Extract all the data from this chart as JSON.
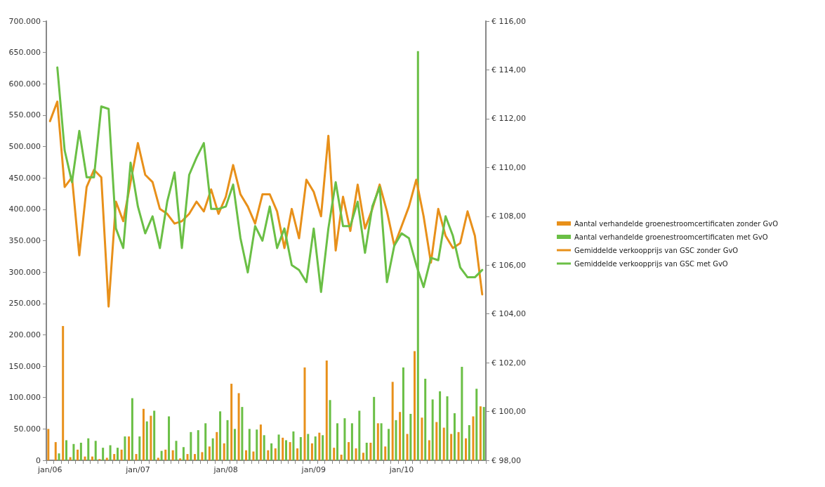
{
  "chart_data": {
    "type": "bar",
    "categories": [
      "jan/06",
      null,
      null,
      null,
      null,
      null,
      null,
      null,
      null,
      null,
      null,
      null,
      "jan/07",
      null,
      null,
      null,
      null,
      null,
      null,
      null,
      null,
      null,
      null,
      null,
      "jan/08",
      null,
      null,
      null,
      null,
      null,
      null,
      null,
      null,
      null,
      null,
      null,
      "jan/09",
      null,
      null,
      null,
      null,
      null,
      null,
      null,
      null,
      null,
      null,
      null,
      "jan/10",
      null,
      null,
      null,
      null,
      null,
      null,
      null,
      null,
      null,
      null,
      null
    ],
    "series": [
      {
        "name": "Aantal verhandelde groenestroomcertificaten zonder GvO",
        "color": "#e8901a",
        "values": [
          50000,
          29000,
          214000,
          5000,
          17000,
          6000,
          6000,
          2000,
          4000,
          10000,
          17000,
          38000,
          10000,
          82000,
          71000,
          4000,
          17000,
          16000,
          3000,
          10000,
          10000,
          13000,
          22000,
          45000,
          27000,
          122000,
          107000,
          16000,
          14000,
          57000,
          16000,
          19000,
          36000,
          29000,
          19000,
          148000,
          27000,
          44000,
          159000,
          20000,
          9000,
          29000,
          19000,
          12000,
          28000,
          59000,
          22000,
          125000,
          77000,
          42000,
          174000,
          68000,
          32000,
          61000,
          52000,
          42000,
          45000,
          35000,
          70000,
          86000
        ]
      },
      {
        "name": "Aantal verhandelde groenestroomcertificaten met GvO",
        "color": "#6abf45",
        "values": [
          null,
          11000,
          32000,
          26000,
          28000,
          35000,
          31000,
          20000,
          24000,
          20000,
          38000,
          99000,
          38000,
          62000,
          79000,
          15000,
          70000,
          31000,
          21000,
          45000,
          48000,
          59000,
          35000,
          78000,
          64000,
          50000,
          85000,
          50000,
          49000,
          40000,
          27000,
          41000,
          32000,
          46000,
          37000,
          42000,
          38000,
          40000,
          96000,
          59000,
          67000,
          59000,
          79000,
          28000,
          101000,
          59000,
          50000,
          64000,
          148000,
          74000,
          652000,
          130000,
          97000,
          110000,
          102000,
          75000,
          149000,
          56000,
          114000,
          85000
        ]
      },
      {
        "name": "Gemiddelde verkoopprijs van GSC zonder GvO",
        "type": "line",
        "axis": "y2",
        "color": "#e8901a",
        "values": [
          111.9,
          112.7,
          109.2,
          109.6,
          106.4,
          109.2,
          109.9,
          109.6,
          104.3,
          108.6,
          107.8,
          109.4,
          111.0,
          109.7,
          109.4,
          108.3,
          108.1,
          107.7,
          107.8,
          108.1,
          108.6,
          108.2,
          109.1,
          108.1,
          108.8,
          110.1,
          108.9,
          108.4,
          107.7,
          108.9,
          108.9,
          108.2,
          106.7,
          108.3,
          107.1,
          109.5,
          109.0,
          108.0,
          111.3,
          106.6,
          108.8,
          107.4,
          109.3,
          107.5,
          108.3,
          109.3,
          108.2,
          106.8,
          107.6,
          108.4,
          109.5,
          108.0,
          106.1,
          108.3,
          107.2,
          106.7,
          106.9,
          108.2,
          107.2,
          104.8
        ]
      },
      {
        "name": "Gemiddelde verkoopprijs van GSC met GvO",
        "type": "line",
        "axis": "y2",
        "color": "#6abf45",
        "values": [
          null,
          114.1,
          110.7,
          109.4,
          111.5,
          109.6,
          109.6,
          112.5,
          112.4,
          107.5,
          106.7,
          110.2,
          108.4,
          107.3,
          108.0,
          106.7,
          108.6,
          109.8,
          106.7,
          109.7,
          110.4,
          111.0,
          108.3,
          108.3,
          108.4,
          109.3,
          107.1,
          105.7,
          107.6,
          107.0,
          108.4,
          106.7,
          107.5,
          106.0,
          105.8,
          105.3,
          107.5,
          104.9,
          107.5,
          109.4,
          107.6,
          107.6,
          108.6,
          106.5,
          108.4,
          109.2,
          105.3,
          106.8,
          107.3,
          107.1,
          106.0,
          105.1,
          106.3,
          106.2,
          108.0,
          107.2,
          105.9,
          105.5,
          105.5,
          105.8
        ]
      }
    ],
    "ylim": [
      0,
      700000
    ],
    "yticks": [
      {
        "value": 0,
        "label": "0"
      },
      {
        "value": 50000,
        "label": "50.000"
      },
      {
        "value": 100000,
        "label": "100.000"
      },
      {
        "value": 150000,
        "label": "150.000"
      },
      {
        "value": 200000,
        "label": "200.000"
      },
      {
        "value": 250000,
        "label": "250.000"
      },
      {
        "value": 300000,
        "label": "300.000"
      },
      {
        "value": 350000,
        "label": "350.000"
      },
      {
        "value": 400000,
        "label": "400.000"
      },
      {
        "value": 450000,
        "label": "450.000"
      },
      {
        "value": 500000,
        "label": "500.000"
      },
      {
        "value": 550000,
        "label": "550.000"
      },
      {
        "value": 600000,
        "label": "600.000"
      },
      {
        "value": 650000,
        "label": "650.000"
      },
      {
        "value": 700000,
        "label": "700.000"
      }
    ],
    "y2lim": [
      98,
      116
    ],
    "y2ticks": [
      {
        "value": 98,
        "label": "€ 98,00"
      },
      {
        "value": 100,
        "label": "€ 100,00"
      },
      {
        "value": 102,
        "label": "€ 102,00"
      },
      {
        "value": 104,
        "label": "€ 104,00"
      },
      {
        "value": 106,
        "label": "€ 106,00"
      },
      {
        "value": 108,
        "label": "€ 108,00"
      },
      {
        "value": 110,
        "label": "€ 110,00"
      },
      {
        "value": 112,
        "label": "€ 112,00"
      },
      {
        "value": 114,
        "label": "€ 114,00"
      },
      {
        "value": 116,
        "label": "€ 116,00"
      }
    ],
    "grid": false,
    "legend": "right",
    "marker": "none",
    "line_style": "solid"
  }
}
